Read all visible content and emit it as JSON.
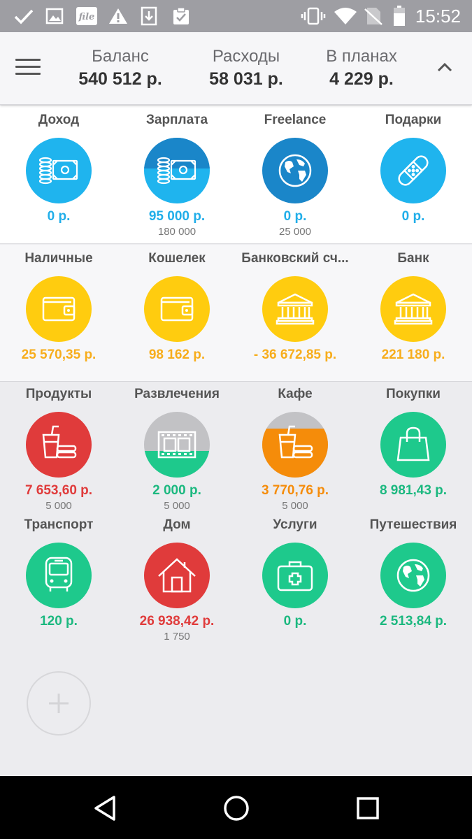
{
  "status_bar": {
    "time": "15:52",
    "left_icons": [
      "check-icon",
      "image-icon",
      "file-app-icon",
      "warning-icon",
      "download-icon",
      "clipboard-check-icon"
    ],
    "right_icons": [
      "vibrate-icon",
      "wifi-icon",
      "no-sim-icon",
      "battery-icon"
    ],
    "file_icon_text": "file"
  },
  "summary": {
    "balance_label": "Баланс",
    "balance_value": "540 512 р.",
    "expenses_label": "Расходы",
    "expenses_value": "58 031 р.",
    "planned_label": "В планах",
    "planned_value": "4 229 р."
  },
  "income": [
    {
      "name": "Доход",
      "amount": "0 р.",
      "sub": "",
      "icon": "money-icon",
      "color": "#1fb4ee"
    },
    {
      "name": "Зарплата",
      "amount": "95 000 р.",
      "sub": "180 000",
      "icon": "money-icon",
      "color": "#1a86c9",
      "progress": 0.53
    },
    {
      "name": "Freelance",
      "amount": "0 р.",
      "sub": "25 000",
      "icon": "globe-icon",
      "color": "#1a86c9"
    },
    {
      "name": "Подарки",
      "amount": "0 р.",
      "sub": "",
      "icon": "bandage-icon",
      "color": "#1fb4ee"
    }
  ],
  "accounts": [
    {
      "name": "Наличные",
      "amount": "25 570,35 р.",
      "icon": "wallet-icon",
      "color": "#ffcc0f"
    },
    {
      "name": "Кошелек",
      "amount": "98 162 р.",
      "icon": "wallet-icon",
      "color": "#ffcc0f"
    },
    {
      "name": "Банковский сч...",
      "amount": "- 36 672,85 р.",
      "icon": "bank-icon",
      "color": "#ffcc0f"
    },
    {
      "name": "Банк",
      "amount": "221 180 р.",
      "icon": "bank-icon",
      "color": "#ffcc0f"
    }
  ],
  "expenses": [
    {
      "name": "Продукты",
      "amount": "7 653,60 р.",
      "sub": "5 000",
      "icon": "food-icon",
      "color": "#e03b3b",
      "progress": 1.0
    },
    {
      "name": "Развлечения",
      "amount": "2 000 р.",
      "sub": "5 000",
      "icon": "film-icon",
      "color": "#1ec98c",
      "progress": 0.4
    },
    {
      "name": "Кафе",
      "amount": "3 770,76 р.",
      "sub": "5 000",
      "icon": "food-icon",
      "color": "#f58c0a",
      "progress": 0.75
    },
    {
      "name": "Покупки",
      "amount": "8 981,43 р.",
      "sub": "",
      "icon": "shopping-bag-icon",
      "color": "#1ec98c"
    },
    {
      "name": "Транспорт",
      "amount": "120 р.",
      "sub": "",
      "icon": "bus-icon",
      "color": "#1ec98c"
    },
    {
      "name": "Дом",
      "amount": "26 938,42 р.",
      "sub": "1 750",
      "icon": "house-icon",
      "color": "#e03b3b"
    },
    {
      "name": "Услуги",
      "amount": "0 р.",
      "sub": "",
      "icon": "first-aid-icon",
      "color": "#1ec98c"
    },
    {
      "name": "Путешествия",
      "amount": "2 513,84 р.",
      "sub": "",
      "icon": "globe-icon",
      "color": "#1ec98c"
    }
  ],
  "add_button": {
    "icon": "plus-icon"
  },
  "nav_bar": {
    "buttons": [
      "back-icon",
      "home-icon",
      "recents-icon"
    ]
  }
}
